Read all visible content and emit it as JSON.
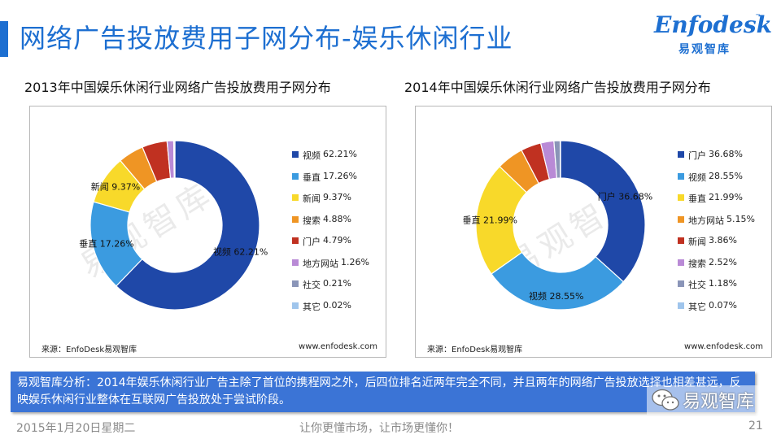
{
  "header": {
    "title": "网络广告投放费用子网分布-娱乐休闲行业",
    "logo": {
      "word": "Enfodesk",
      "cn": "易观智库",
      "tm": "™"
    }
  },
  "chart_data": [
    {
      "type": "pie",
      "donut": true,
      "title": "2013年中国娱乐休闲行业网络广告投放费用子网分布",
      "categories": [
        "视频",
        "垂直",
        "新闻",
        "搜索",
        "门户",
        "地方网站",
        "社交",
        "其它"
      ],
      "values": [
        62.21,
        17.26,
        9.37,
        4.88,
        4.79,
        1.26,
        0.21,
        0.02
      ],
      "colors": [
        "#1f48a8",
        "#3b9be0",
        "#f8d92a",
        "#ef9524",
        "#c03121",
        "#b98ad6",
        "#8a95b8",
        "#9fc5ec"
      ],
      "data_labels": [
        {
          "text": "视频 62.21%",
          "index": 0
        },
        {
          "text": "垂直 17.26%",
          "index": 1
        },
        {
          "text": "新闻 9.37%",
          "index": 2
        }
      ],
      "legend": "right"
    },
    {
      "type": "pie",
      "donut": true,
      "title": "2014年中国娱乐休闲行业网络广告投放费用子网分布",
      "categories": [
        "门户",
        "视频",
        "垂直",
        "地方网站",
        "新闻",
        "搜索",
        "社交",
        "其它"
      ],
      "values": [
        36.68,
        28.55,
        21.99,
        5.15,
        3.86,
        2.52,
        1.18,
        0.07
      ],
      "colors": [
        "#1f48a8",
        "#3b9be0",
        "#f8d92a",
        "#ef9524",
        "#c03121",
        "#b98ad6",
        "#8a95b8",
        "#9fc5ec"
      ],
      "data_labels": [
        {
          "text": "门户 36.68%",
          "index": 0
        },
        {
          "text": "视频 28.55%",
          "index": 1
        },
        {
          "text": "垂直 21.99%",
          "index": 2
        }
      ],
      "legend": "right"
    }
  ],
  "panels": [
    {
      "source": "来源：EnfoDesk易观智库",
      "site": "www.enfodesk.com",
      "watermark": "易观智库"
    },
    {
      "source": "来源：EnfoDesk易观智库",
      "site": "www.enfodesk.com",
      "watermark": "易观智库"
    }
  ],
  "analysis": {
    "text": "易观智库分析：2014年娱乐休闲行业广告主除了首位的携程网之外，后四位排名近两年完全不同，并且两年的网络广告投放选择也相差甚远，反映娱乐休闲行业整体在互联网广告投放处于尝试阶段。"
  },
  "wechat": {
    "label": "易观智库"
  },
  "footer": {
    "date": "2015年1月20日星期二",
    "slogan": "让你更懂市场，让市场更懂你！",
    "page": "21"
  }
}
